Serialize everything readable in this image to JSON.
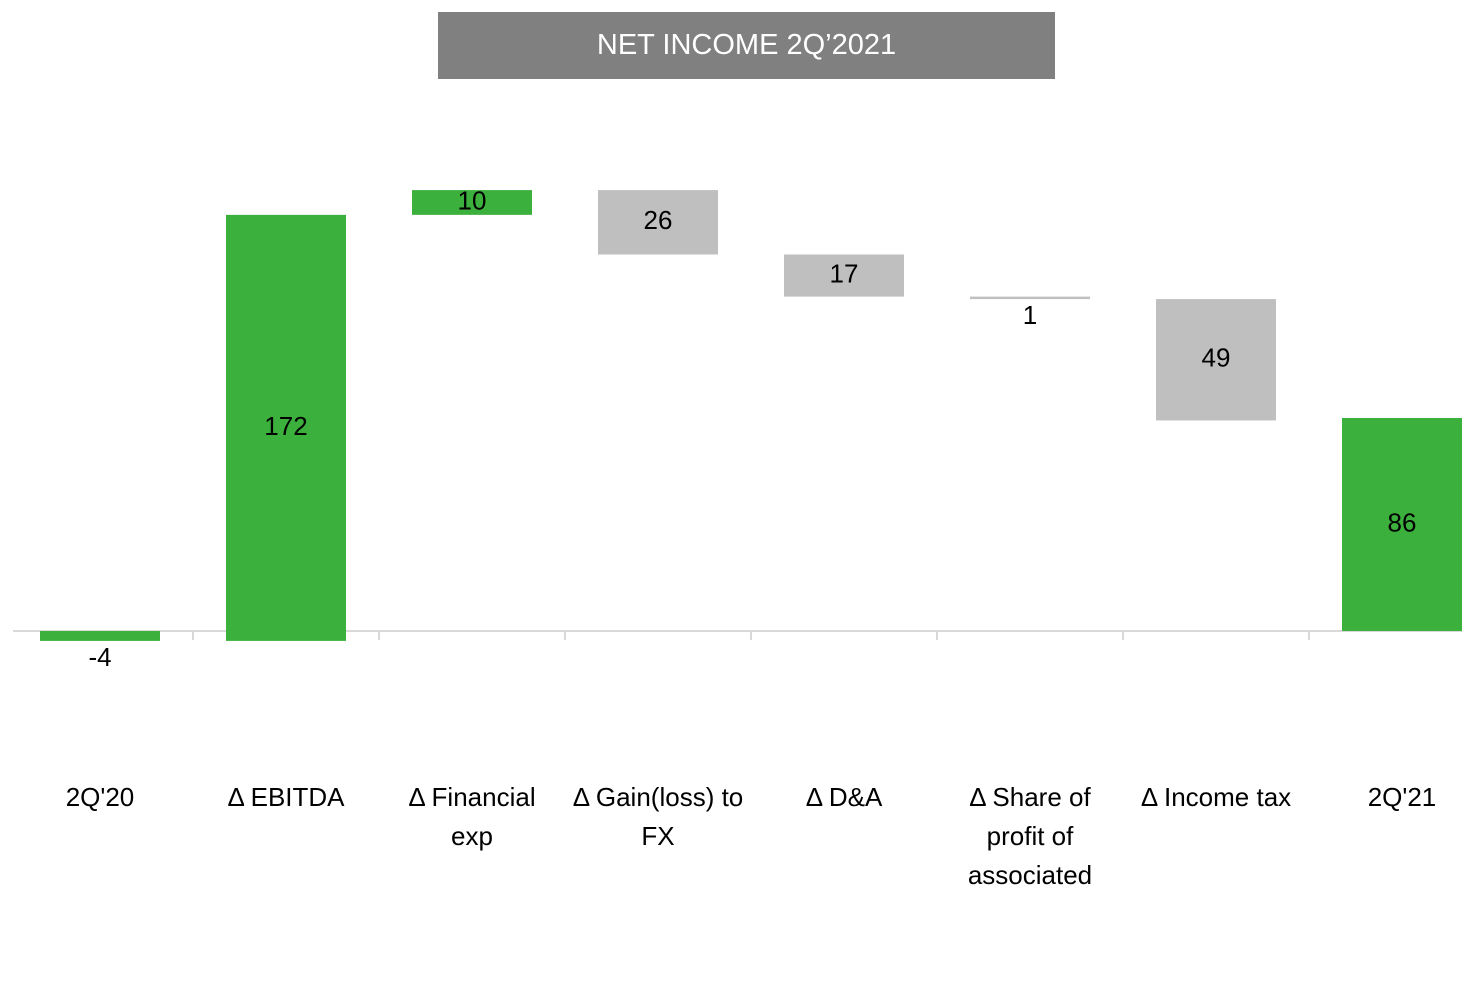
{
  "chart_data": {
    "type": "waterfall",
    "title": "NET INCOME 2Q’2021",
    "categories": [
      "2Q'20",
      "Δ EBITDA",
      "Δ Financial exp",
      "Δ Gain(loss) to FX",
      "Δ D&A",
      "Δ Share of profit of associated",
      "Δ Income tax",
      "2Q'21"
    ],
    "values": [
      -4,
      172,
      10,
      -26,
      -17,
      -1,
      -49,
      86
    ],
    "value_labels": [
      "-4",
      "172",
      "10",
      "26",
      "17",
      "1",
      "49",
      "86"
    ],
    "measure": [
      "total",
      "relative",
      "relative",
      "relative",
      "relative",
      "relative",
      "relative",
      "total"
    ],
    "colors": {
      "increase": "#3cb03c",
      "decrease": "#bfbfbf",
      "total": "#3cb03c"
    },
    "ylim": [
      -60,
      200
    ]
  }
}
